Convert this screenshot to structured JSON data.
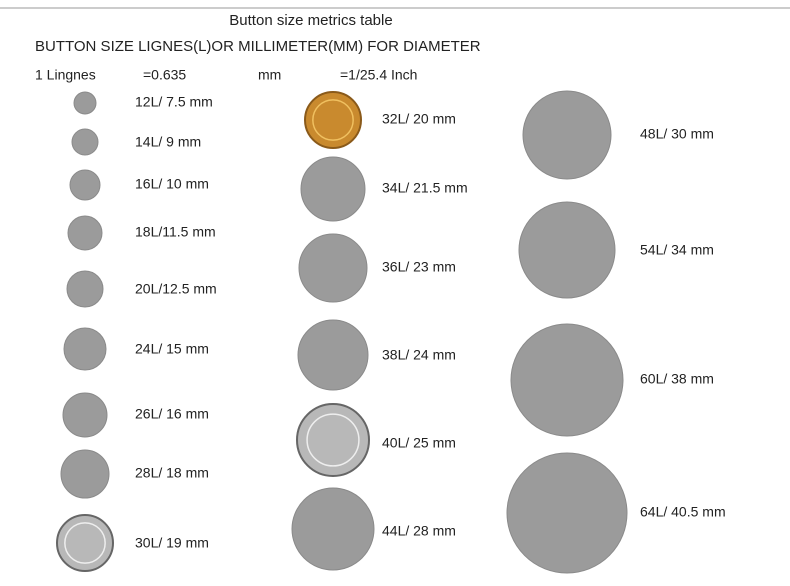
{
  "header": {
    "title": "Button size metrics table",
    "subtitle": "BUTTON SIZE LIGNES(L)OR MILLIMETER(MM) FOR DIAMETER",
    "conversion": [
      "1 Lingnes",
      "=0.635",
      "mm",
      "=1/25.4 Inch"
    ]
  },
  "columns": [
    [
      "12L/ 7.5 mm",
      "14L/ 9 mm",
      "16L/ 10 mm",
      "18L/11.5 mm",
      "20L/12.5 mm",
      "24L/ 15 mm",
      "26L/ 16 mm",
      "28L/ 18 mm",
      "30L/ 19 mm"
    ],
    [
      "32L/ 20 mm",
      "34L/ 21.5 mm",
      "36L/ 23 mm",
      "38L/ 24 mm",
      "40L/ 25 mm",
      "44L/ 28 mm"
    ],
    [
      "48L/ 30 mm",
      "54L/ 34 mm",
      "60L/ 38 mm",
      "64L/ 40.5 mm"
    ]
  ]
}
